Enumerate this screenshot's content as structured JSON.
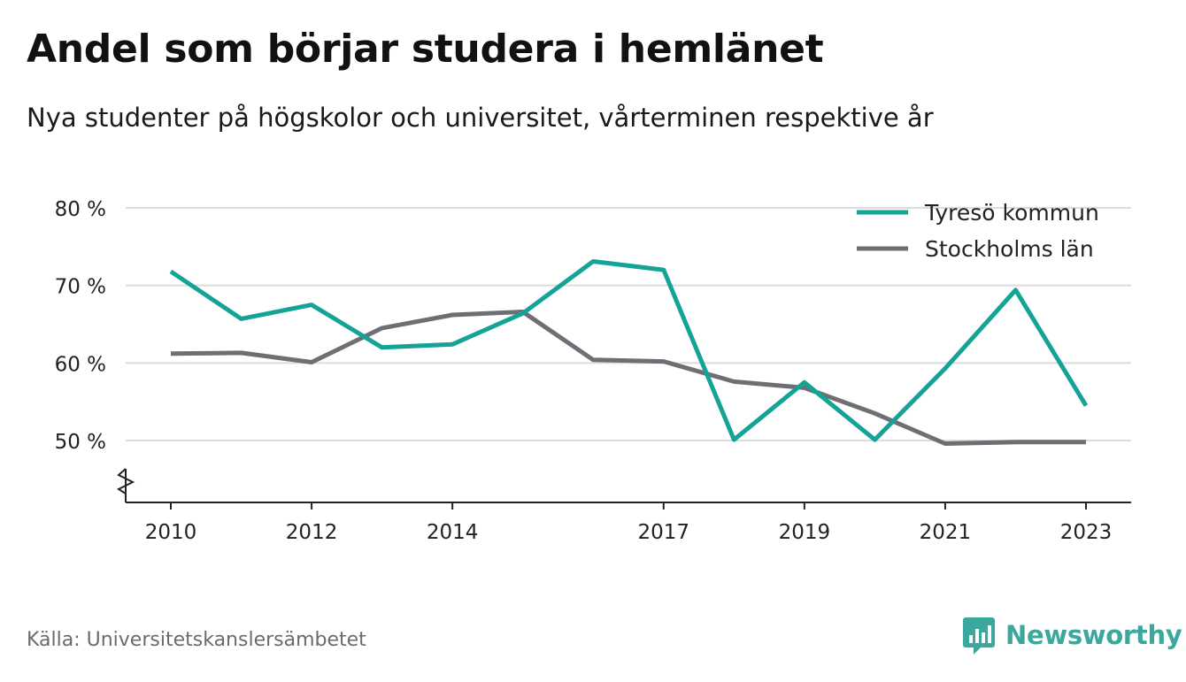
{
  "header": {
    "title": "Andel som börjar studera i hemlänet",
    "subtitle": "Nya studenter på högskolor och universitet, vårterminen respektive år"
  },
  "footer": {
    "source": "Källa: Universitetskanslersämbetet",
    "brand": "Newsworthy",
    "brand_icon": "bar-chart-speech-bubble-icon",
    "brand_color": "#3aa89d"
  },
  "chart_data": {
    "type": "line",
    "title": "Andel som börjar studera i hemlänet",
    "subtitle": "Nya studenter på högskolor och universitet, vårterminen respektive år",
    "x": [
      2010,
      2011,
      2012,
      2013,
      2014,
      2015,
      2016,
      2017,
      2018,
      2019,
      2020,
      2021,
      2022,
      2023
    ],
    "x_ticks": [
      "2010",
      "2012",
      "2014",
      "2017",
      "2019",
      "2021",
      "2023"
    ],
    "y_ticks": [
      50,
      60,
      70,
      80
    ],
    "y_tick_labels": [
      "50 %",
      "60 %",
      "70 %",
      "80 %"
    ],
    "ylim": [
      42,
      82
    ],
    "y_axis_break": true,
    "grid": true,
    "legend_position": "top-right",
    "series": [
      {
        "name": "Tyresö kommun",
        "color": "#14a396",
        "values": [
          71.8,
          65.7,
          67.5,
          62.0,
          62.4,
          66.4,
          73.1,
          72.0,
          50.1,
          57.5,
          50.1,
          59.3,
          69.4,
          54.5
        ]
      },
      {
        "name": "Stockholms län",
        "color": "#6f6e74",
        "values": [
          61.2,
          61.3,
          60.1,
          64.5,
          66.2,
          66.6,
          60.4,
          60.2,
          57.6,
          56.8,
          53.5,
          49.6,
          49.8,
          49.8
        ]
      }
    ]
  }
}
